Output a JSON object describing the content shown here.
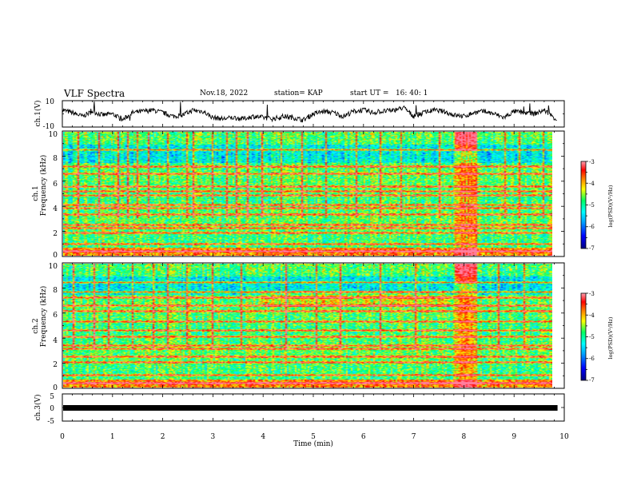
{
  "header": {
    "title": "VLF Spectra",
    "date": "Nov.18, 2022",
    "station": "station= KAP",
    "start_ut": "start UT =   16: 40: 1"
  },
  "colors": {
    "ch1_line": "#000000",
    "ch3_band": "#000000",
    "colormap": [
      "#000080",
      "#0000ff",
      "#00a0ff",
      "#00ffff",
      "#00ff60",
      "#ffff00",
      "#ff8000",
      "#ff0000",
      "#ff80a0"
    ]
  },
  "chart_data": [
    {
      "type": "line",
      "ylabel": "ch.1(V)",
      "ylim": [
        -10,
        10
      ],
      "y_ticks": [
        "10",
        "-10"
      ],
      "xlim": [
        0,
        10
      ],
      "series": [
        {
          "name": "",
          "x": [
            0,
            0.2,
            0.4,
            0.6,
            0.8,
            1.0,
            1.2,
            1.4,
            1.6,
            1.8,
            2.0,
            2.2,
            2.4,
            2.6,
            2.8,
            3.0,
            3.2,
            3.4,
            3.6,
            3.8,
            4.0,
            4.2,
            4.4,
            4.6,
            4.8,
            5.0,
            5.2,
            5.4,
            5.6,
            5.8,
            6.0,
            6.2,
            6.4,
            6.6,
            6.8,
            7.0,
            7.2,
            7.4,
            7.6,
            7.8,
            8.0,
            8.2,
            8.4,
            8.6,
            8.8,
            9.0,
            9.2,
            9.4,
            9.6,
            9.8
          ],
          "values": [
            3,
            1,
            -2,
            2,
            -1,
            0,
            -5,
            1,
            2,
            3,
            1,
            -2,
            -1,
            3,
            2,
            -3,
            -4,
            -3,
            -4,
            -2,
            -3,
            -4,
            -2,
            -3,
            -5,
            0,
            2,
            1,
            -2,
            2,
            3,
            1,
            2,
            3,
            5,
            -2,
            1,
            3,
            2,
            -1,
            -2,
            1,
            2,
            0,
            -3,
            2,
            1,
            0,
            3,
            -3
          ]
        }
      ]
    },
    {
      "type": "heatmap",
      "title": "",
      "ylabel": "ch.1",
      "ylabel2": "Frequency (kHz)",
      "xlim": [
        0,
        10
      ],
      "ylim": [
        0,
        10
      ],
      "y_ticks": [
        "0",
        "2",
        "4",
        "6",
        "8",
        "10"
      ],
      "colorbar": {
        "label": "log(PSD)(V²/Hz)",
        "range": [
          -7,
          -3
        ],
        "ticks": [
          "-3",
          "-4",
          "-5",
          "-6",
          "-7"
        ]
      },
      "bands_khz": [
        0.3,
        0.9,
        1.8,
        2.2,
        2.5,
        3.3,
        3.8,
        4.1,
        4.9,
        5.2,
        5.6,
        6.6,
        7.2,
        8.6
      ],
      "burst_interval_min": [
        7.9,
        8.35
      ],
      "vertical_spike_times_min": [
        0.3,
        0.7,
        1.1,
        1.3,
        1.5,
        1.7,
        2.1,
        2.5,
        2.6,
        3.0,
        3.3,
        3.5,
        3.7,
        4.0,
        4.4,
        4.8,
        5.3,
        5.9,
        6.4,
        6.8,
        7.6,
        8.9,
        9.2,
        9.7
      ]
    },
    {
      "type": "heatmap",
      "title": "",
      "ylabel": "ch.2",
      "ylabel2": "Frequency (kHz)",
      "xlim": [
        0,
        10
      ],
      "ylim": [
        0,
        10
      ],
      "y_ticks": [
        "0",
        "2",
        "4",
        "6",
        "8",
        "10"
      ],
      "colorbar": {
        "label": "log(PSD)(V²/Hz)",
        "range": [
          -7,
          -3
        ],
        "ticks": [
          "-3",
          "-4",
          "-5",
          "-6",
          "-7"
        ]
      },
      "bands_khz": [
        0.3,
        1.0,
        2.0,
        2.5,
        3.1,
        3.4,
        4.1,
        4.6,
        5.3,
        6.2,
        6.6,
        7.3,
        7.7,
        8.5
      ],
      "burst_interval_min": [
        7.9,
        8.35
      ],
      "elevated_interval_min": [
        4.0,
        7.8
      ],
      "elevated_range_khz": [
        6.5,
        7.8
      ],
      "vertical_spike_times_min": [
        0.2,
        0.6,
        0.9,
        1.4,
        1.8,
        2.1,
        2.5,
        3.0,
        3.6,
        4.5,
        5.1,
        5.6,
        6.4,
        7.1,
        8.8,
        9.3
      ]
    },
    {
      "type": "line",
      "ylabel": "ch.3(V)",
      "xlabel": "Time (min)",
      "ylim": [
        -5,
        5
      ],
      "y_ticks": [
        "5",
        "0",
        "-5"
      ],
      "xlim": [
        0,
        10
      ],
      "x_ticks": [
        "0",
        "1",
        "2",
        "3",
        "4",
        "5",
        "6",
        "7",
        "8",
        "9",
        "10"
      ],
      "series": [
        {
          "name": "",
          "x": [
            0,
            9.85
          ],
          "values": [
            0,
            0
          ]
        }
      ]
    }
  ]
}
